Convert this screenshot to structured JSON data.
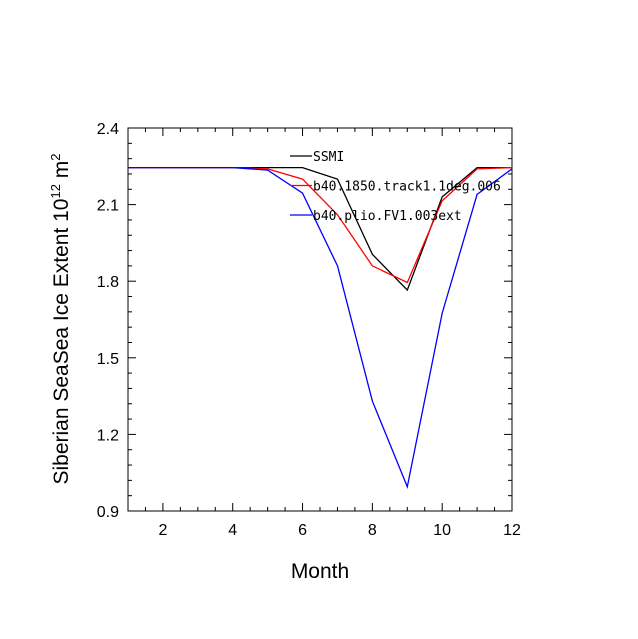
{
  "chart_data": {
    "type": "line",
    "title": "",
    "xlabel": "Month",
    "ylabel_parts": [
      "Siberian SeaSea Ice Extent 10",
      "12",
      " m",
      "2"
    ],
    "xlim": [
      1,
      12
    ],
    "ylim": [
      0.9,
      2.4
    ],
    "xticks": [
      2,
      4,
      6,
      8,
      10,
      12
    ],
    "xtick_labels": [
      "2",
      "4",
      "6",
      "8",
      "10",
      "12"
    ],
    "yticks": [
      0.9,
      1.2,
      1.5,
      1.8,
      2.1,
      2.4
    ],
    "ytick_labels": [
      "0.9",
      "1.2",
      "1.5",
      "1.8",
      "2.1",
      "2.4"
    ],
    "x_minor_step": 0.5,
    "y_minor_step": 0.06,
    "grid": false,
    "legend_position": "top-center",
    "x": [
      1,
      2,
      3,
      4,
      5,
      6,
      7,
      8,
      9,
      10,
      11,
      12
    ],
    "series": [
      {
        "name": "SSMI",
        "color": "#000000",
        "values": [
          2.245,
          2.245,
          2.245,
          2.245,
          2.245,
          2.245,
          2.2,
          1.905,
          1.765,
          2.13,
          2.245,
          2.245
        ]
      },
      {
        "name": "b40.1850.track1.1deg.006",
        "color": "#ff0000",
        "values": [
          2.245,
          2.245,
          2.245,
          2.245,
          2.24,
          2.2,
          2.06,
          1.86,
          1.795,
          2.115,
          2.24,
          2.245
        ]
      },
      {
        "name": "b40.plio.FV1.003ext",
        "color": "#0000ff",
        "values": [
          2.245,
          2.245,
          2.245,
          2.245,
          2.235,
          2.145,
          1.86,
          1.33,
          0.995,
          1.675,
          2.14,
          2.24
        ]
      }
    ]
  }
}
